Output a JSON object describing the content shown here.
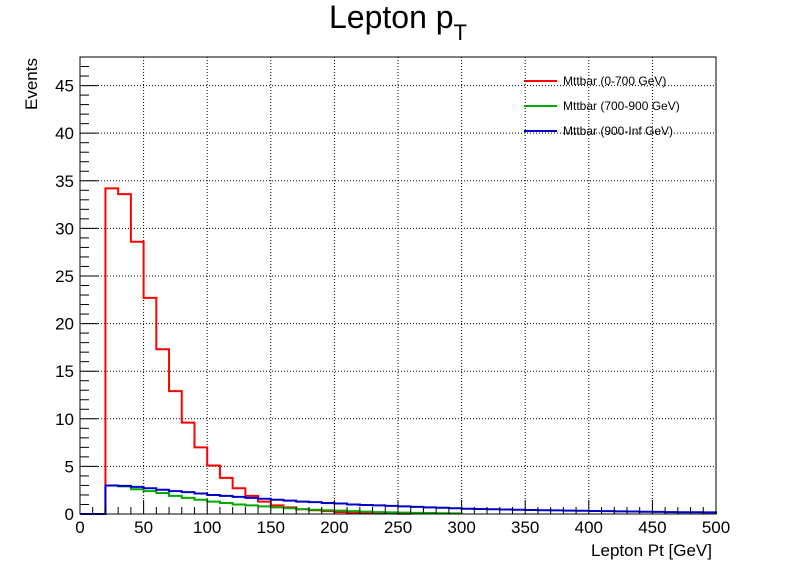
{
  "chart_data": {
    "type": "histogram",
    "title": "Lepton p",
    "title_subscript": "T",
    "xlabel": "Lepton Pt [GeV]",
    "ylabel": "Events",
    "xlim": [
      0,
      500
    ],
    "ylim": [
      0,
      48
    ],
    "grid": true,
    "legend_position": "top-right",
    "bin_width": 10,
    "x_ticks": [
      0,
      50,
      100,
      150,
      200,
      250,
      300,
      350,
      400,
      450,
      500
    ],
    "y_ticks": [
      0,
      5,
      10,
      15,
      20,
      25,
      30,
      35,
      40,
      45
    ],
    "series": [
      {
        "name": "Mttbar (0-700 GeV)",
        "color": "#ff0000",
        "bin_edges": [
          20,
          30,
          40,
          50,
          60,
          70,
          80,
          90,
          100,
          110,
          120,
          130,
          140,
          150,
          160,
          170,
          180,
          190,
          200,
          210,
          220,
          230,
          240,
          250,
          260
        ],
        "values": [
          34.2,
          33.6,
          28.6,
          22.7,
          17.3,
          12.9,
          9.6,
          7.0,
          5.1,
          3.8,
          2.7,
          1.9,
          1.3,
          0.9,
          0.7,
          0.5,
          0.4,
          0.3,
          0.2,
          0.15,
          0.1,
          0.08,
          0.05,
          0.03
        ]
      },
      {
        "name": "Mttbar (700-900 GeV)",
        "color": "#00aa00",
        "bin_edges": [
          20,
          30,
          40,
          50,
          60,
          70,
          80,
          90,
          100,
          110,
          120,
          130,
          140,
          150,
          160,
          170,
          180,
          190,
          200,
          210,
          220,
          230,
          240,
          250,
          260,
          270,
          280,
          290,
          300
        ],
        "values": [
          3.0,
          2.9,
          2.6,
          2.4,
          2.2,
          1.9,
          1.7,
          1.5,
          1.3,
          1.15,
          1.0,
          0.9,
          0.8,
          0.7,
          0.6,
          0.5,
          0.45,
          0.4,
          0.35,
          0.3,
          0.25,
          0.2,
          0.17,
          0.14,
          0.12,
          0.1,
          0.08,
          0.06
        ]
      },
      {
        "name": "Mttbar (900-Inf GeV)",
        "color": "#0000cc",
        "bin_edges": [
          20,
          30,
          40,
          50,
          60,
          70,
          80,
          90,
          100,
          110,
          120,
          130,
          140,
          150,
          160,
          170,
          180,
          190,
          200,
          210,
          220,
          230,
          240,
          250,
          260,
          270,
          280,
          290,
          300,
          310,
          320,
          330,
          340,
          350,
          360,
          370,
          380,
          390,
          400,
          410,
          420,
          430,
          440,
          450,
          460,
          470,
          480,
          490,
          500
        ],
        "values": [
          3.0,
          2.95,
          2.85,
          2.7,
          2.55,
          2.4,
          2.3,
          2.15,
          2.0,
          1.9,
          1.8,
          1.7,
          1.6,
          1.5,
          1.4,
          1.3,
          1.25,
          1.15,
          1.1,
          1.0,
          0.95,
          0.9,
          0.85,
          0.8,
          0.75,
          0.7,
          0.65,
          0.6,
          0.55,
          0.52,
          0.5,
          0.47,
          0.44,
          0.42,
          0.4,
          0.38,
          0.36,
          0.34,
          0.32,
          0.3,
          0.28,
          0.26,
          0.24,
          0.22,
          0.2,
          0.19,
          0.18,
          0.17
        ]
      }
    ]
  }
}
